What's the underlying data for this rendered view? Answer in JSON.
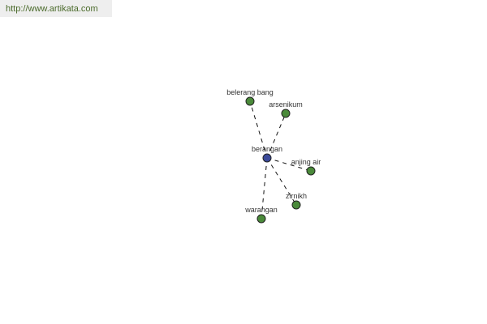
{
  "watermark": "http://www.artikata.com",
  "graph": {
    "center": {
      "label": "berangan",
      "color": "#3b4a9a"
    },
    "node_color": "#4a8a3a",
    "edge_style": "dashed",
    "nodes": [
      {
        "label": "belerang bang"
      },
      {
        "label": "arsenikum"
      },
      {
        "label": "anjing air"
      },
      {
        "label": "zirnikh"
      },
      {
        "label": "warangan"
      }
    ]
  }
}
